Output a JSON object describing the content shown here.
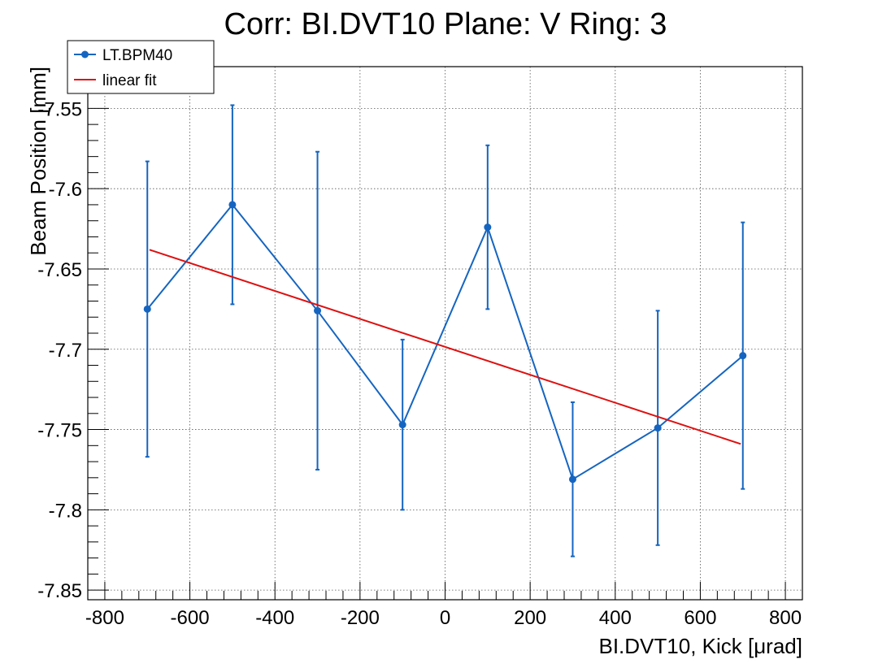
{
  "chart_data": {
    "type": "scatter",
    "title": "Corr: BI.DVT10 Plane: V Ring: 3",
    "xlabel": "BI.DVT10, Kick [μrad]",
    "ylabel": "Beam Position [mm]",
    "xlim": [
      -840,
      840
    ],
    "ylim": [
      -7.856,
      -7.524
    ],
    "x_ticks": [
      -800,
      -600,
      -400,
      -200,
      0,
      200,
      400,
      600,
      800
    ],
    "x_tick_labels": [
      "-800",
      "-600",
      "-400",
      "-200",
      "0",
      "200",
      "400",
      "600",
      "800"
    ],
    "y_ticks": [
      -7.85,
      -7.8,
      -7.75,
      -7.7,
      -7.65,
      -7.6,
      -7.55
    ],
    "y_tick_labels": [
      "-7.85",
      "-7.8",
      "-7.75",
      "-7.7",
      "-7.65",
      "-7.6",
      "-7.55"
    ],
    "grid": true,
    "legend_position": "top-left",
    "series": [
      {
        "name": "LT.BPM40",
        "color": "#1565c0",
        "marker": "circle",
        "connect": true,
        "x": [
          -700,
          -500,
          -300,
          -100,
          100,
          300,
          500,
          700
        ],
        "y": [
          -7.675,
          -7.61,
          -7.676,
          -7.747,
          -7.624,
          -7.781,
          -7.749,
          -7.704
        ],
        "yerr": [
          0.092,
          0.062,
          0.099,
          0.053,
          0.051,
          0.048,
          0.073,
          0.083
        ]
      },
      {
        "name": "linear fit",
        "color": "#dd1111",
        "marker": "none",
        "connect": true,
        "x": [
          -695,
          695
        ],
        "y": [
          -7.638,
          -7.759
        ]
      }
    ]
  }
}
